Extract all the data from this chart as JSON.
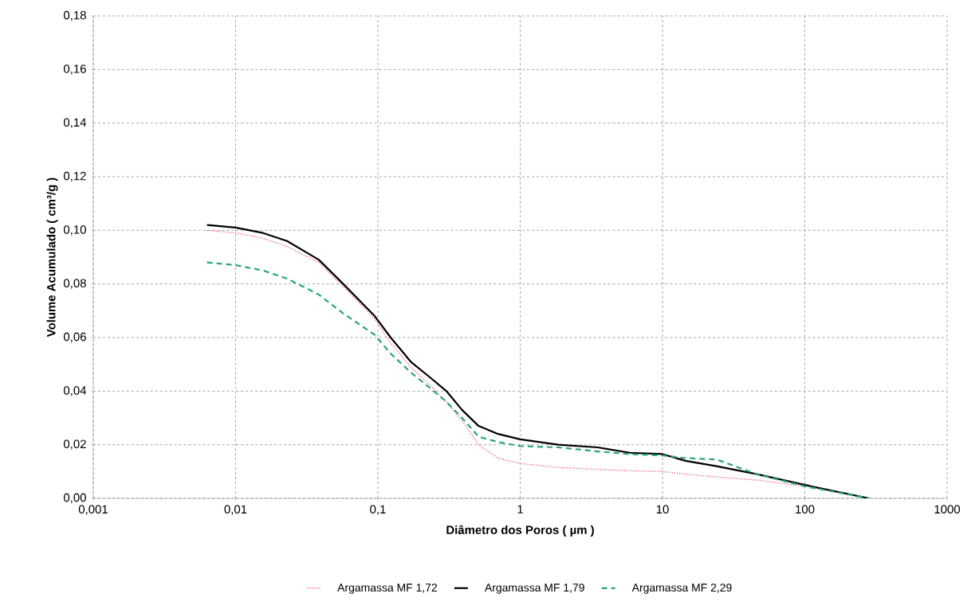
{
  "chart_data": {
    "type": "line",
    "xlabel": "Diâmetro dos Poros ( µm )",
    "ylabel": "Volume Acumulado ( cm³/g )",
    "log": "x",
    "xlim": [
      0.001,
      1000
    ],
    "xticks": [
      {
        "value": 0.001,
        "label": "0,001"
      },
      {
        "value": 0.01,
        "label": "0,01"
      },
      {
        "value": 0.1,
        "label": "0,1"
      },
      {
        "value": 1,
        "label": "1"
      },
      {
        "value": 10,
        "label": "10"
      },
      {
        "value": 100,
        "label": "100"
      },
      {
        "value": 1000,
        "label": "1000"
      }
    ],
    "ylim": [
      0,
      0.18
    ],
    "yticks": [
      {
        "value": 0,
        "label": "0,00"
      },
      {
        "value": 0.02,
        "label": "0,02"
      },
      {
        "value": 0.04,
        "label": "0,04"
      },
      {
        "value": 0.06,
        "label": "0,06"
      },
      {
        "value": 0.08,
        "label": "0,08"
      },
      {
        "value": 0.1,
        "label": "0,10"
      },
      {
        "value": 0.12,
        "label": "0,12"
      },
      {
        "value": 0.14,
        "label": "0,14"
      },
      {
        "value": 0.16,
        "label": "0,16"
      },
      {
        "value": 0.18,
        "label": "0,18"
      }
    ],
    "x": [
      0.0063,
      0.01,
      0.0156,
      0.023,
      0.0385,
      0.057,
      0.095,
      0.123,
      0.17,
      0.234,
      0.303,
      0.39,
      0.51,
      0.7,
      1,
      1.85,
      3.5,
      5.9,
      10,
      14.5,
      24,
      46,
      100,
      283
    ],
    "grid": true,
    "legend": "bottom",
    "marker": "none",
    "series": [
      {
        "name": "Argamassa MF 1,72",
        "color": "#e0406a",
        "line_style": "dotted",
        "values": [
          0.1,
          0.099,
          0.097,
          0.094,
          0.088,
          0.079,
          0.067,
          0.058,
          0.049,
          0.042,
          0.036,
          0.029,
          0.02,
          0.015,
          0.013,
          0.0115,
          0.0108,
          0.0103,
          0.01,
          0.009,
          0.008,
          0.0068,
          0.0045,
          0
        ]
      },
      {
        "name": "Argamassa MF 1,79",
        "color": "#000000",
        "line_style": "solid",
        "values": [
          0.102,
          0.101,
          0.099,
          0.096,
          0.089,
          0.08,
          0.068,
          0.06,
          0.051,
          0.045,
          0.04,
          0.033,
          0.027,
          0.024,
          0.022,
          0.02,
          0.019,
          0.017,
          0.0165,
          0.014,
          0.012,
          0.009,
          0.005,
          0
        ]
      },
      {
        "name": "Argamassa MF 2,29",
        "color": "#2aa37f",
        "line_style": "dashed",
        "values": [
          0.088,
          0.087,
          0.085,
          0.082,
          0.076,
          0.069,
          0.061,
          0.054,
          0.047,
          0.041,
          0.036,
          0.03,
          0.023,
          0.021,
          0.0195,
          0.019,
          0.0175,
          0.0165,
          0.016,
          0.015,
          0.0145,
          0.009,
          0.0045,
          0
        ]
      }
    ]
  }
}
